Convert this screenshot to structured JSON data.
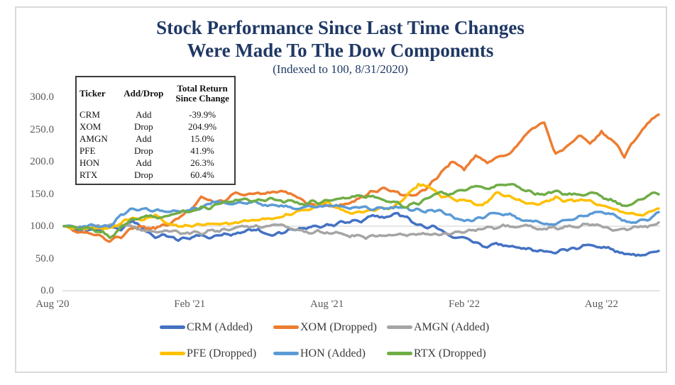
{
  "title": {
    "line1": "Stock Performance Since Last Time Changes",
    "line2": "Were Made To The Dow Components",
    "subtitle": "(Indexed to 100, 8/31/2020)"
  },
  "inset_table": {
    "headers": [
      "Ticker",
      "Add/Drop",
      "Total Return Since Change"
    ],
    "rows": [
      {
        "ticker": "CRM",
        "add_drop": "Add",
        "total_return": "-39.9%"
      },
      {
        "ticker": "XOM",
        "add_drop": "Drop",
        "total_return": "204.9%"
      },
      {
        "ticker": "AMGN",
        "add_drop": "Add",
        "total_return": "15.0%"
      },
      {
        "ticker": "PFE",
        "add_drop": "Drop",
        "total_return": "41.9%"
      },
      {
        "ticker": "HON",
        "add_drop": "Add",
        "total_return": "26.3%"
      },
      {
        "ticker": "RTX",
        "add_drop": "Drop",
        "total_return": "60.4%"
      }
    ]
  },
  "colors": {
    "title_text": "#1F3864",
    "axis_text": "#595959",
    "legend_text": "#3A3A3A",
    "gridline": "#D6D6D6",
    "axis_line": "#C9C9C9",
    "frame_border": "#D9D9D9",
    "table_border": "#3B3B3B"
  },
  "chart_data": {
    "type": "line",
    "title": "Stock Performance Since Last Time Changes Were Made To The Dow Components",
    "subtitle": "(Indexed to 100, 8/31/2020)",
    "index_base": 100,
    "index_base_date": "8/31/2020",
    "x_unit": "months since 8/31/2020",
    "x_range": [
      0,
      26
    ],
    "sample_interval_months": 0.5,
    "x_ticks": [
      {
        "label": "Aug '20",
        "month": -0.5
      },
      {
        "label": "Feb '21",
        "month": 5.5
      },
      {
        "label": "Aug '21",
        "month": 11.5
      },
      {
        "label": "Feb '22",
        "month": 17.5
      },
      {
        "label": "Aug '22",
        "month": 23.5
      }
    ],
    "y_ticks": [
      0,
      50,
      100,
      150,
      200,
      250,
      300
    ],
    "ylim": [
      0,
      320
    ],
    "gridline_value": 100,
    "grid": "single horizontal line at 100 only",
    "legend_position": "bottom",
    "series": [
      {
        "name": "CRM (Added)",
        "ticker": "CRM",
        "status": "Added",
        "color": "#4472C4",
        "values": [
          100,
          96,
          93,
          97,
          99,
          97,
          106,
          95,
          86,
          84,
          80,
          82,
          86,
          82,
          88,
          90,
          92,
          95,
          90,
          87,
          95,
          96,
          98,
          101,
          104,
          106,
          110,
          114,
          116,
          120,
          113,
          101,
          96,
          97,
          85,
          79,
          75,
          70,
          73,
          71,
          67,
          62,
          59,
          63,
          66,
          67,
          70,
          67,
          65,
          57,
          55,
          58,
          60
        ]
      },
      {
        "name": "XOM (Dropped)",
        "ticker": "XOM",
        "status": "Dropped",
        "color": "#ED7D31",
        "values": [
          100,
          94,
          90,
          84,
          79,
          84,
          95,
          99,
          97,
          103,
          112,
          124,
          146,
          136,
          141,
          152,
          150,
          153,
          149,
          156,
          148,
          140,
          136,
          133,
          131,
          136,
          145,
          153,
          157,
          151,
          147,
          150,
          165,
          183,
          200,
          188,
          210,
          198,
          208,
          216,
          232,
          250,
          258,
          214,
          224,
          238,
          228,
          247,
          232,
          210,
          233,
          258,
          272
        ]
      },
      {
        "name": "AMGN (Added)",
        "ticker": "AMGN",
        "status": "Added",
        "color": "#A5A5A5",
        "values": [
          100,
          99,
          97,
          100,
          102,
          101,
          99,
          95,
          94,
          94,
          90,
          88,
          91,
          93,
          95,
          96,
          98,
          100,
          101,
          99,
          96,
          93,
          91,
          89,
          87,
          85,
          84,
          84,
          83,
          84,
          86,
          87,
          88,
          89,
          90,
          92,
          94,
          97,
          99,
          100,
          101,
          99,
          97,
          98,
          99,
          101,
          103,
          99,
          96,
          95,
          97,
          102,
          106
        ]
      },
      {
        "name": "PFE (Dropped)",
        "ticker": "PFE",
        "status": "Dropped",
        "color": "#FFC000",
        "values": [
          100,
          98,
          96,
          97,
          99,
          104,
          114,
          110,
          116,
          105,
          98,
          100,
          102,
          101,
          103,
          104,
          107,
          110,
          112,
          113,
          118,
          124,
          132,
          138,
          130,
          122,
          121,
          124,
          127,
          132,
          148,
          165,
          160,
          148,
          143,
          140,
          134,
          138,
          150,
          147,
          138,
          132,
          136,
          144,
          141,
          139,
          141,
          132,
          126,
          122,
          117,
          121,
          128
        ]
      },
      {
        "name": "HON (Added)",
        "ticker": "HON",
        "status": "Added",
        "color": "#5B9BD5",
        "values": [
          100,
          101,
          99,
          103,
          100,
          118,
          125,
          124,
          126,
          125,
          126,
          124,
          128,
          135,
          137,
          136,
          138,
          134,
          132,
          131,
          129,
          127,
          130,
          132,
          130,
          128,
          129,
          127,
          128,
          129,
          126,
          123,
          124,
          122,
          115,
          110,
          112,
          117,
          120,
          118,
          112,
          108,
          103,
          105,
          108,
          113,
          118,
          122,
          118,
          108,
          104,
          110,
          123
        ]
      },
      {
        "name": "RTX (Dropped)",
        "ticker": "RTX",
        "status": "Dropped",
        "color": "#70AD47",
        "values": [
          100,
          98,
          95,
          92,
          85,
          99,
          110,
          116,
          114,
          117,
          119,
          123,
          127,
          131,
          134,
          138,
          141,
          142,
          141,
          140,
          138,
          136,
          139,
          137,
          141,
          143,
          147,
          145,
          143,
          138,
          130,
          135,
          145,
          150,
          148,
          155,
          162,
          158,
          163,
          165,
          158,
          152,
          148,
          154,
          152,
          150,
          152,
          146,
          140,
          134,
          136,
          148,
          152
        ]
      }
    ]
  }
}
